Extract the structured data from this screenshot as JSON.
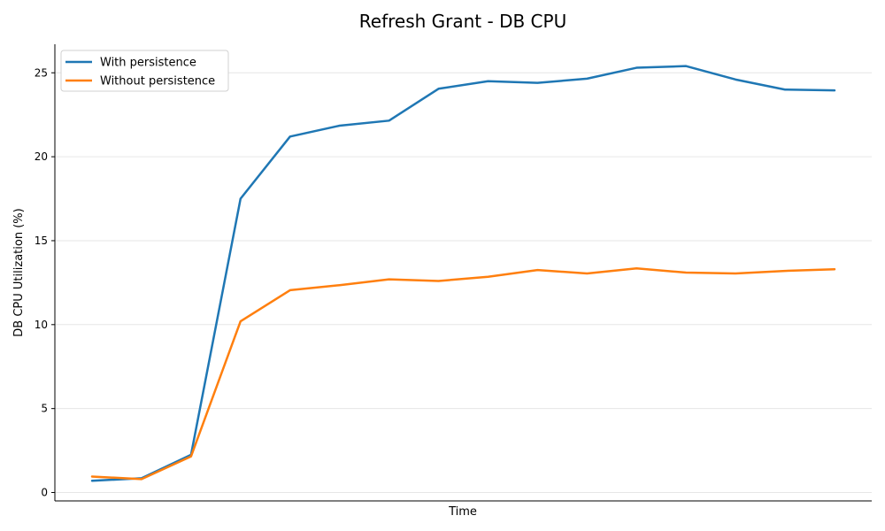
{
  "chart_data": {
    "type": "line",
    "title": "Refresh Grant - DB CPU",
    "xlabel": "Time",
    "ylabel": "DB CPU Utilization (%)",
    "ylim": [
      -0.5,
      26.7
    ],
    "yticks": [
      0,
      5,
      10,
      15,
      20,
      25
    ],
    "grid": "horizontal",
    "legend_position": "top-left",
    "x": [
      1,
      2,
      3,
      4,
      5,
      6,
      7,
      8,
      9,
      10,
      11,
      12,
      13,
      14,
      15,
      16
    ],
    "series": [
      {
        "name": "With persistence",
        "color": "#1f77b4",
        "values": [
          0.7,
          0.85,
          2.25,
          17.5,
          21.2,
          21.85,
          22.15,
          24.05,
          24.5,
          24.4,
          24.65,
          25.3,
          25.4,
          24.6,
          24.0,
          23.95
        ]
      },
      {
        "name": "Without persistence",
        "color": "#ff7f0e",
        "values": [
          0.95,
          0.8,
          2.15,
          10.2,
          12.05,
          12.35,
          12.7,
          12.6,
          12.85,
          13.25,
          13.05,
          13.35,
          13.1,
          13.05,
          13.2,
          13.3
        ]
      }
    ]
  }
}
